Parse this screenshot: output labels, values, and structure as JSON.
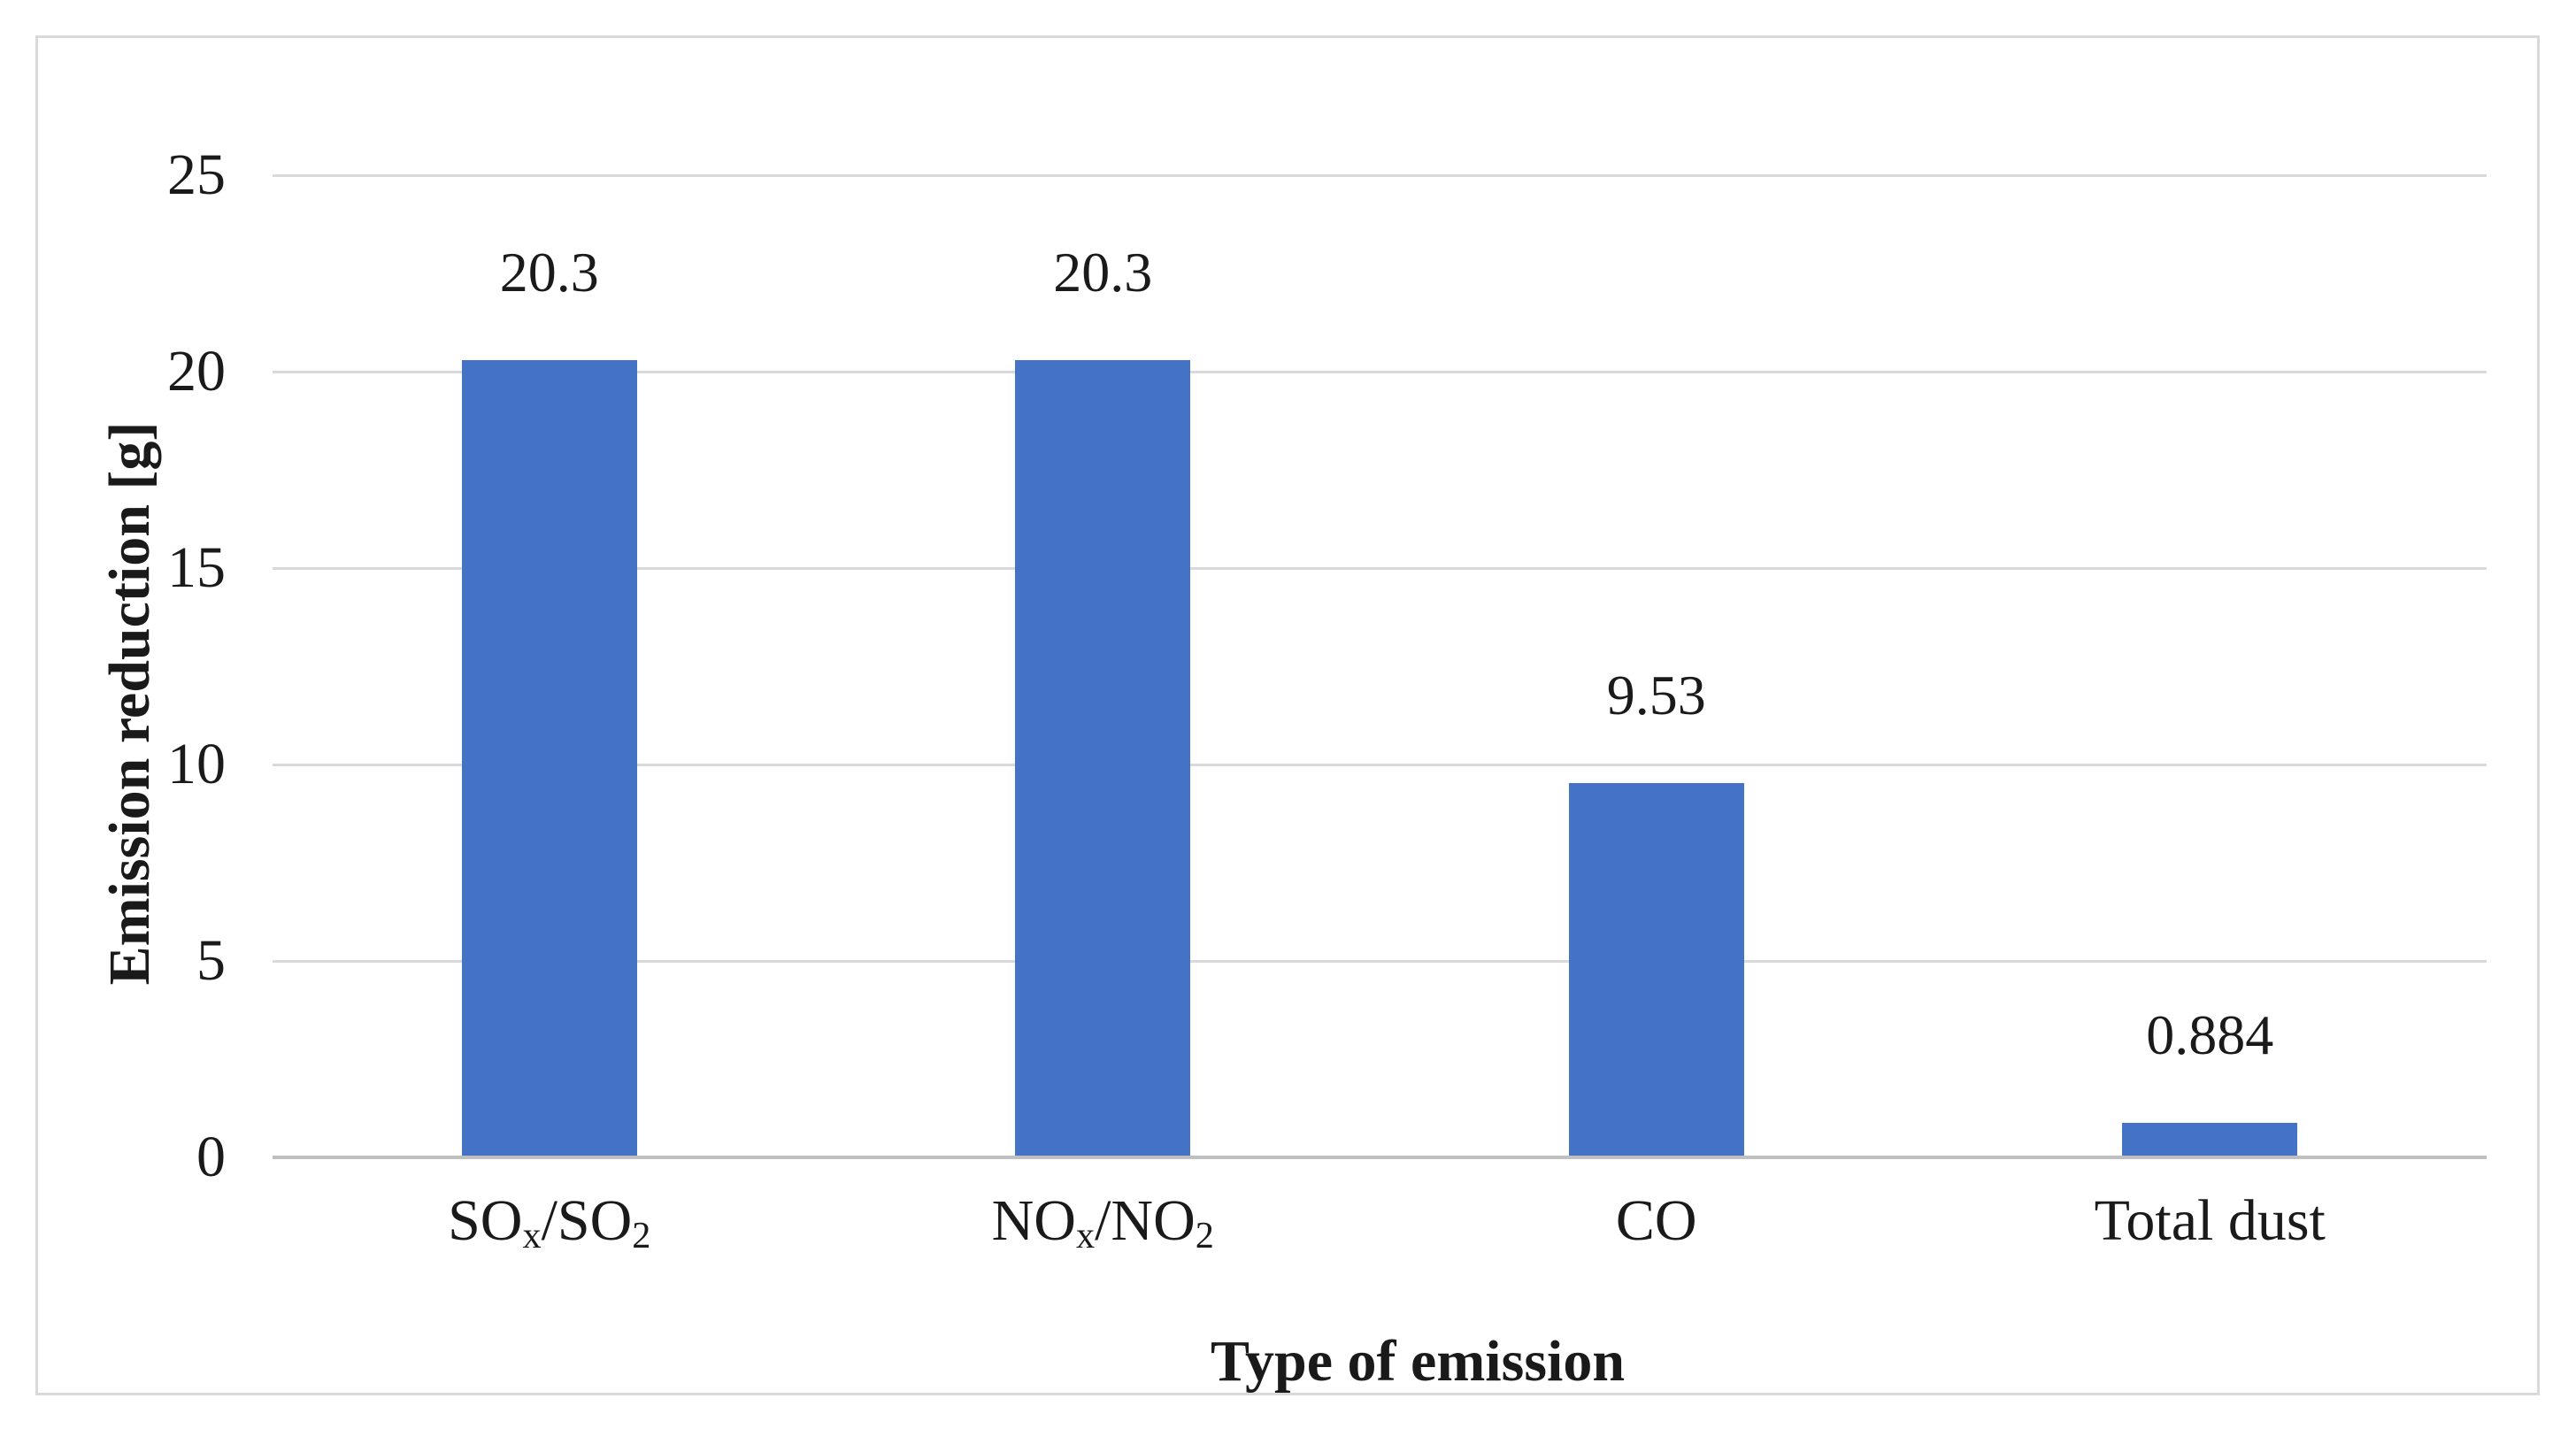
{
  "chart_data": {
    "type": "bar",
    "title": "",
    "categories": [
      "SOx/SO2",
      "NOx/NO2",
      "CO",
      "Total dust"
    ],
    "categories_rich": [
      [
        {
          "t": "SO"
        },
        {
          "t": "x",
          "sub": true
        },
        {
          "t": "/SO"
        },
        {
          "t": "2",
          "sub": true
        }
      ],
      [
        {
          "t": "NO"
        },
        {
          "t": "x",
          "sub": true
        },
        {
          "t": "/NO"
        },
        {
          "t": "2",
          "sub": true
        }
      ],
      [
        {
          "t": "CO"
        }
      ],
      [
        {
          "t": "Total dust"
        }
      ]
    ],
    "values": [
      20.3,
      20.3,
      9.53,
      0.884
    ],
    "value_labels": [
      "20.3",
      "20.3",
      "9.53",
      "0.884"
    ],
    "xlabel": "Type of emission",
    "ylabel": "Emission reduction [g]",
    "ylim": [
      0,
      25
    ],
    "yticks": [
      0,
      5,
      10,
      15,
      20,
      25
    ],
    "grid": "horizontal-only",
    "legend": "none",
    "colors": {
      "bar": "#4472C4",
      "gridline": "#D9D9D9",
      "axis_line": "#BFBFBF",
      "text": "#1A1A1A",
      "frame_border": "#D9D9D9",
      "background": "#FFFFFF"
    }
  }
}
